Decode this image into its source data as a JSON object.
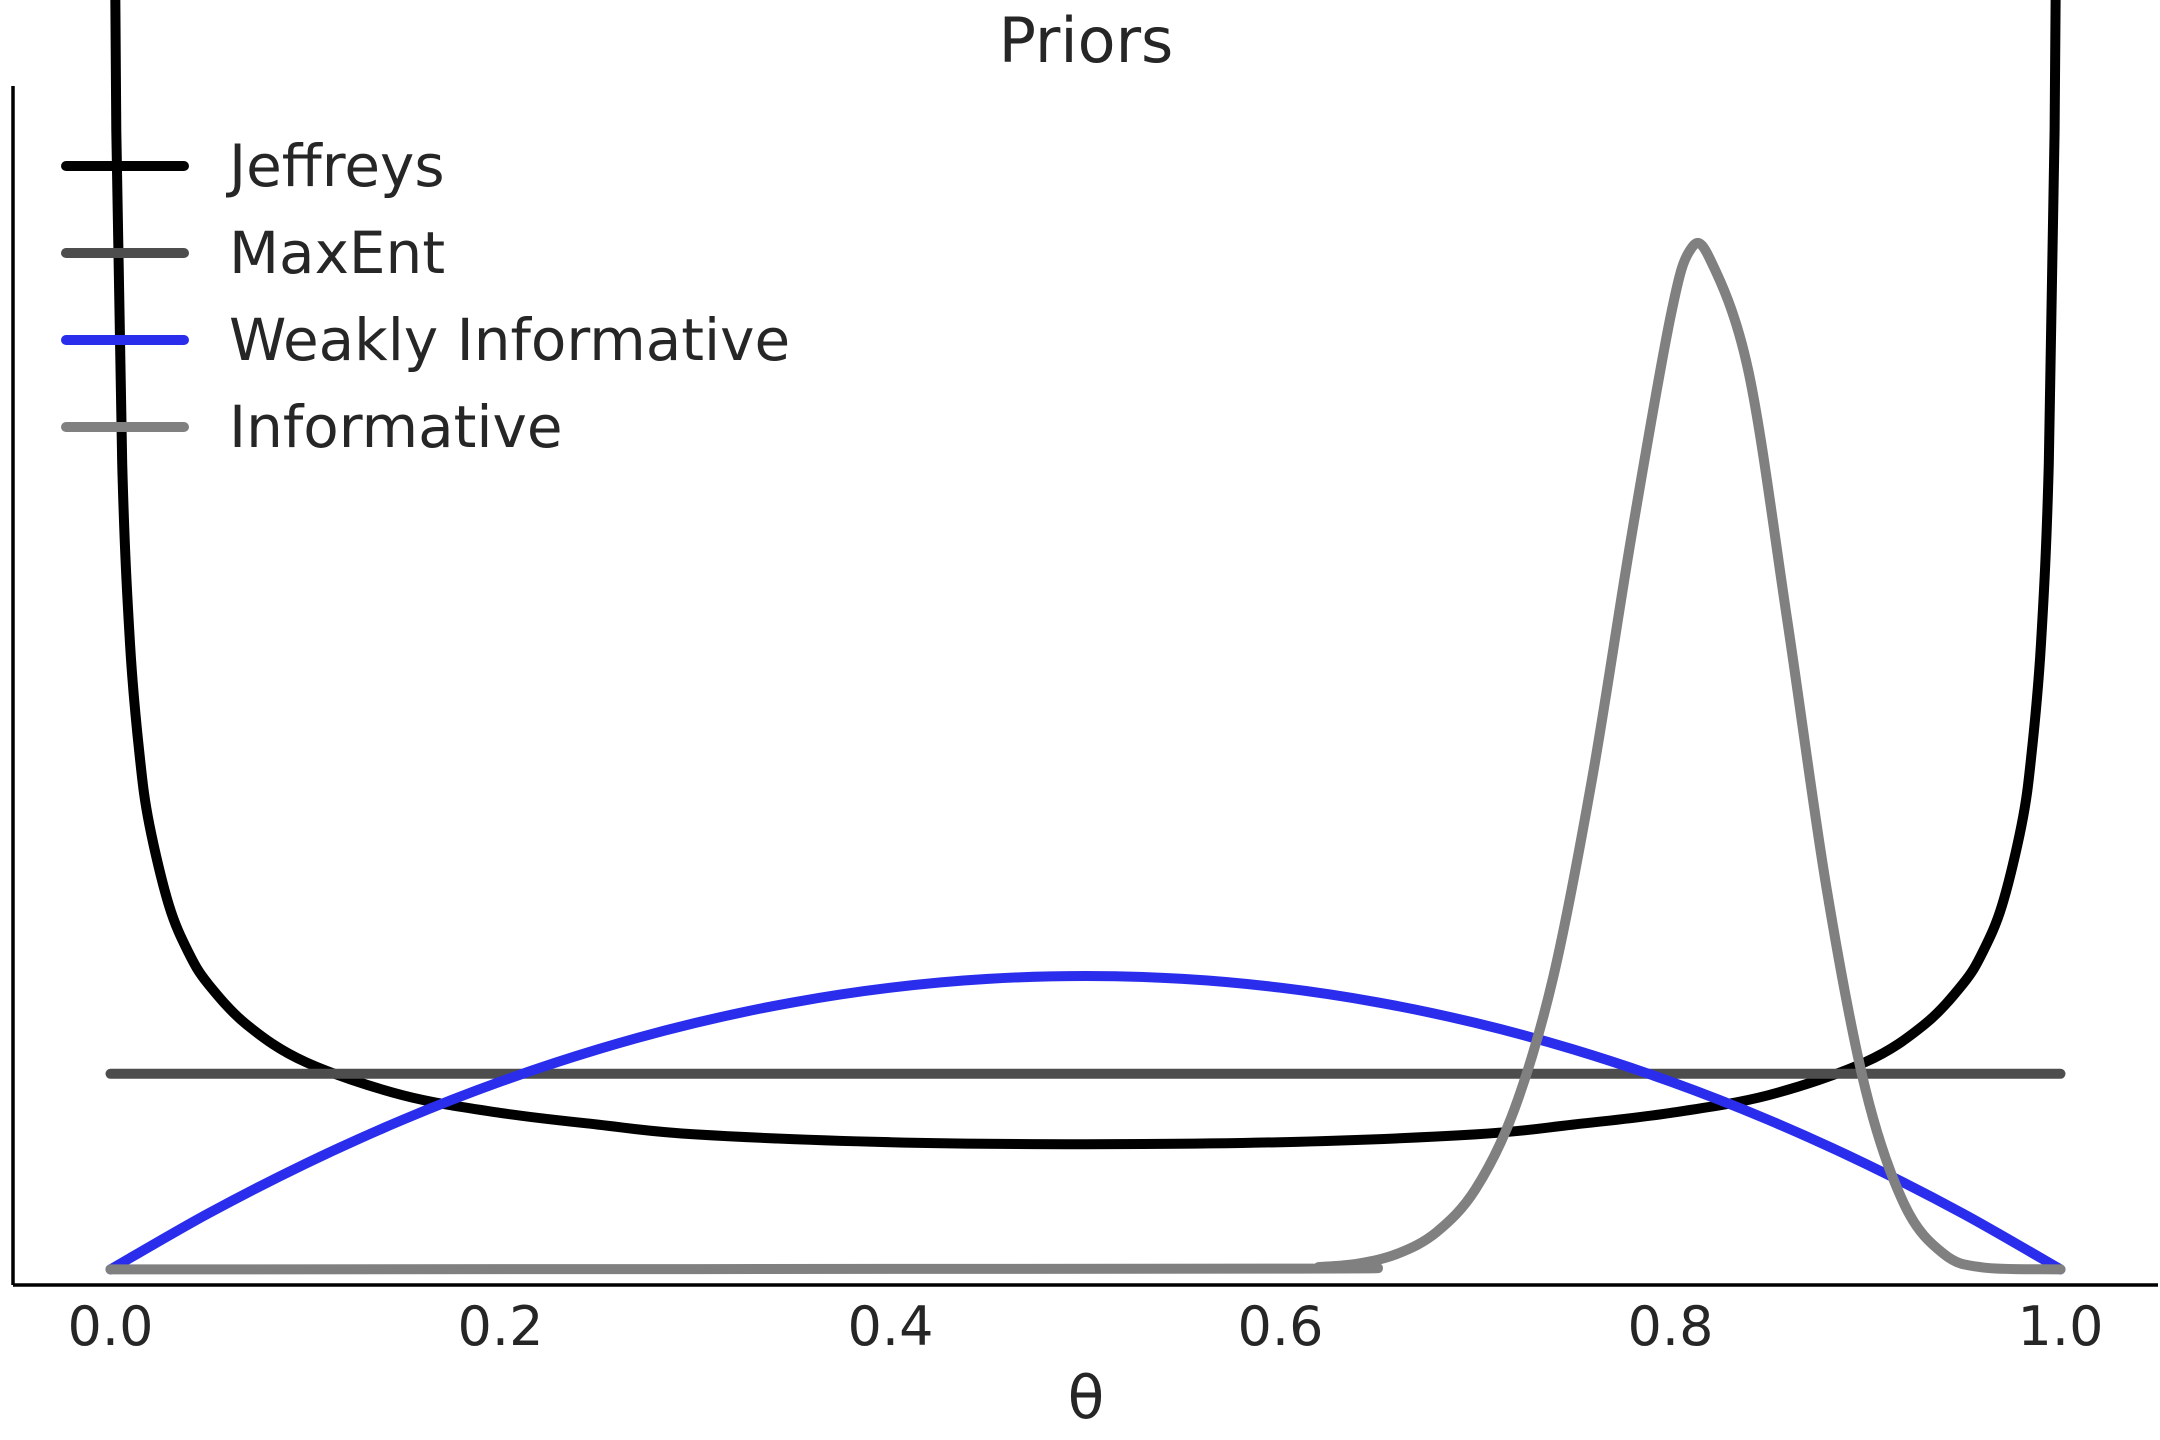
{
  "chart_data": {
    "type": "line",
    "title": "Priors",
    "xlabel": "θ",
    "ylabel": "",
    "xlim": [
      -0.05,
      1.05
    ],
    "ylim": [
      -0.08,
      6.05
    ],
    "xticks": [
      0.0,
      0.2,
      0.4,
      0.6,
      0.8,
      1.0
    ],
    "xtick_labels": [
      "0.0",
      "0.2",
      "0.4",
      "0.6",
      "0.8",
      "1.0"
    ],
    "grid": false,
    "legend_position": "top-left",
    "series": [
      {
        "name": "Jeffreys",
        "color": "#000000",
        "distribution": "Beta(0.5, 0.5)",
        "x": [
          0.0015,
          0.003,
          0.006,
          0.01,
          0.015,
          0.02,
          0.03,
          0.04,
          0.05,
          0.07,
          0.1,
          0.15,
          0.2,
          0.25,
          0.3,
          0.4,
          0.5,
          0.6,
          0.7,
          0.75,
          0.8,
          0.85,
          0.9,
          0.93,
          0.95,
          0.96,
          0.97,
          0.98,
          0.985,
          0.99,
          0.994,
          0.997,
          0.9985
        ],
        "y": [
          8.22,
          5.82,
          4.12,
          3.2,
          2.62,
          2.27,
          1.86,
          1.62,
          1.46,
          1.25,
          1.06,
          0.89,
          0.8,
          0.74,
          0.69,
          0.65,
          0.64,
          0.65,
          0.69,
          0.74,
          0.8,
          0.89,
          1.06,
          1.25,
          1.46,
          1.62,
          1.86,
          2.27,
          2.62,
          3.2,
          4.12,
          5.82,
          8.22
        ]
      },
      {
        "name": "MaxEnt",
        "color": "#4d4d4d",
        "distribution": "Beta(1, 1)",
        "x": [
          0.0,
          1.0
        ],
        "y": [
          1.0,
          1.0
        ]
      },
      {
        "name": "Weakly Informative",
        "color": "#2a2eec",
        "distribution": "Beta(2, 2)",
        "x": [
          0.0,
          0.05,
          0.1,
          0.15,
          0.2,
          0.25,
          0.3,
          0.35,
          0.4,
          0.45,
          0.5,
          0.55,
          0.6,
          0.65,
          0.7,
          0.75,
          0.8,
          0.85,
          0.9,
          0.95,
          1.0
        ],
        "y": [
          0.0,
          0.285,
          0.54,
          0.765,
          0.96,
          1.125,
          1.26,
          1.365,
          1.44,
          1.485,
          1.5,
          1.485,
          1.44,
          1.365,
          1.26,
          1.125,
          0.96,
          0.765,
          0.54,
          0.285,
          0.0
        ]
      },
      {
        "name": "Informative",
        "color": "#808080",
        "distribution": "Beta(40, 10)",
        "x": [
          0.0,
          0.6,
          0.62,
          0.64,
          0.66,
          0.68,
          0.7,
          0.72,
          0.74,
          0.76,
          0.78,
          0.8,
          0.81,
          0.82,
          0.84,
          0.86,
          0.88,
          0.9,
          0.92,
          0.94,
          0.96,
          1.0
        ],
        "y": [
          0.0,
          0.004,
          0.012,
          0.03,
          0.08,
          0.19,
          0.41,
          0.82,
          1.5,
          2.52,
          3.75,
          4.87,
          5.21,
          5.17,
          4.59,
          3.31,
          1.95,
          0.92,
          0.33,
          0.08,
          0.01,
          0.0
        ]
      }
    ]
  }
}
